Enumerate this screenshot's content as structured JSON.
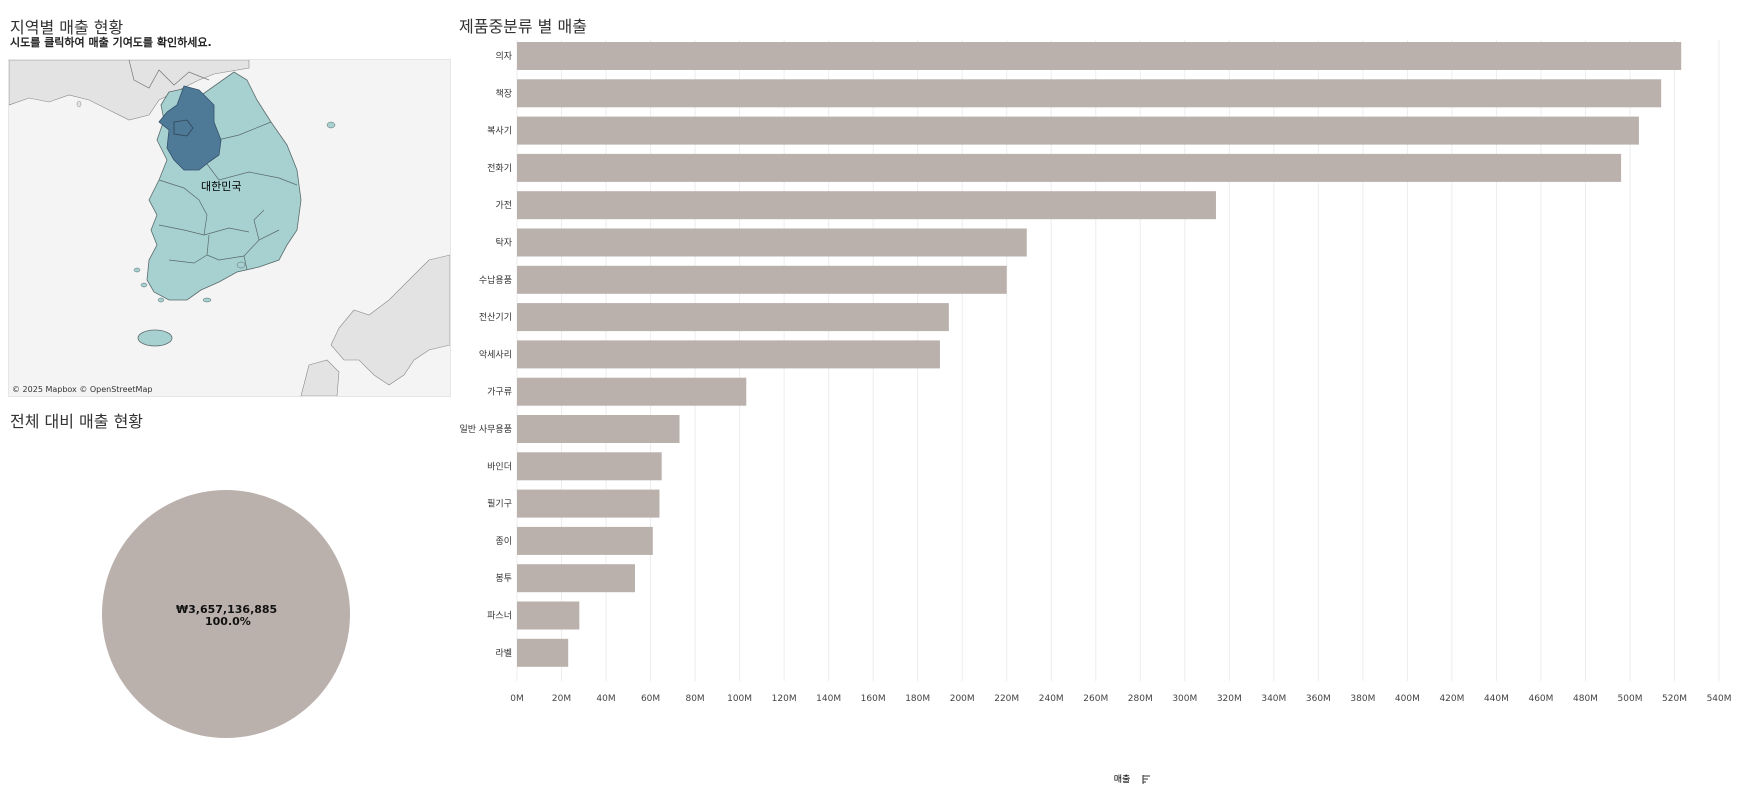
{
  "map_section": {
    "title": "지역별 매출 현황",
    "subtitle": "시도를 클릭하여 매출 기여도를 확인하세요.",
    "credit": "© 2025 Mapbox © OpenStreetMap",
    "region_label": "대한민국",
    "colors": {
      "land_background": "#e3e3e3",
      "region_default": "#a7d0d0",
      "region_selected": "#4e7a97",
      "border": "#6b6b6b"
    }
  },
  "pie_section": {
    "title": "전체 대비 매출 현황",
    "value_label": "₩3,657,136,885",
    "percent_label": "100.0%",
    "share": 1.0,
    "color": "#bab0ac"
  },
  "bar_section": {
    "title": "제품중분류 별 매출",
    "axis_title": "매출",
    "sort_icon": "sort-descending-icon"
  },
  "chart_data": [
    {
      "type": "bar",
      "orientation": "horizontal",
      "title": "제품중분류 별 매출",
      "xlabel": "매출",
      "ylabel": "",
      "bar_color": "#bab0ac",
      "categories": [
        "의자",
        "책장",
        "복사기",
        "전화기",
        "가전",
        "탁자",
        "수납용품",
        "전산기기",
        "악세사리",
        "가구류",
        "일반 사무용품",
        "바인더",
        "필기구",
        "종이",
        "봉투",
        "파스너",
        "라벨"
      ],
      "values": [
        523,
        514,
        504,
        496,
        314,
        229,
        220,
        194,
        190,
        103,
        73,
        65,
        64,
        61,
        53,
        28,
        23
      ],
      "value_unit": "M",
      "xlim": [
        0,
        548
      ],
      "x_ticks": [
        0,
        20,
        40,
        60,
        80,
        100,
        120,
        140,
        160,
        180,
        200,
        220,
        240,
        260,
        280,
        300,
        320,
        340,
        360,
        380,
        400,
        420,
        440,
        460,
        480,
        500,
        520,
        540
      ],
      "x_tick_labels": [
        "0M",
        "20M",
        "40M",
        "60M",
        "80M",
        "100M",
        "120M",
        "140M",
        "160M",
        "180M",
        "200M",
        "220M",
        "240M",
        "260M",
        "280M",
        "300M",
        "320M",
        "340M",
        "360M",
        "380M",
        "400M",
        "420M",
        "440M",
        "460M",
        "480M",
        "500M",
        "520M",
        "540M"
      ],
      "grid": true
    },
    {
      "type": "pie",
      "title": "전체 대비 매출 현황",
      "slices": [
        {
          "value": 3657136885,
          "share": 1.0,
          "label": "₩3,657,136,885",
          "percent_label": "100.0%"
        }
      ]
    }
  ]
}
